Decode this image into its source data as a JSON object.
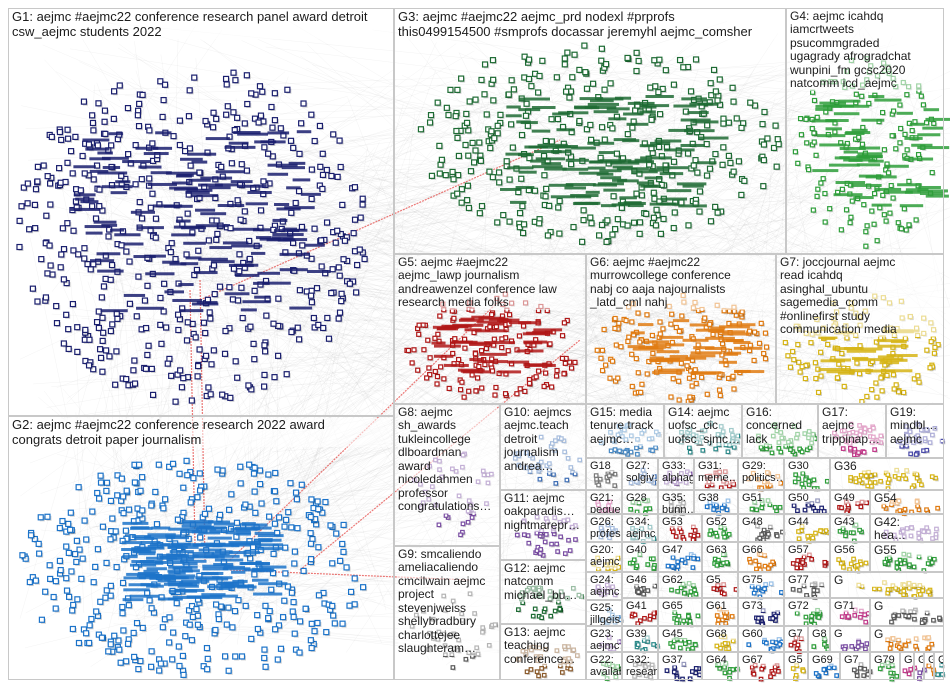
{
  "groups": [
    {
      "id": "G1",
      "text": "G1: aejmc #aejmc22 conference research panel award detroit\ncsw_aejmc students 2022",
      "color": "#1a1f6e",
      "size": "big"
    },
    {
      "id": "G2",
      "text": "G2: aejmc #aejmc22 conference research 2022 award\ncongrats detroit paper journalism",
      "color": "#1c73c9",
      "size": "big"
    },
    {
      "id": "G3",
      "text": "G3: aejmc #aejmc22 aejmc_prd nodexl #prprofs\nthis0499154500 #smprofs docassar jeremyhl aejmc_comsher",
      "color": "#1e6b34",
      "size": "big"
    },
    {
      "id": "G4",
      "text": "G4: aejmc icahdq\niamcrtweets\npsucommgraded\nugagrady afrogradchat\nwunpini_fm gcsc2020\nnatcomm icd_aejmc",
      "color": "#2e9e3a",
      "size": "mid"
    },
    {
      "id": "G5",
      "text": "G5: aejmc #aejmc22\naejmc_lawp journalism\nandreawenzel conference law\nresearch media folks",
      "color": "#b01818",
      "size": "mid"
    },
    {
      "id": "G6",
      "text": "G6: aejmc #aejmc22\nmurrowcollege conference\nnabj co aaja najournalists\n_latd_cml nahj",
      "color": "#e07b12",
      "size": "mid"
    },
    {
      "id": "G7",
      "text": "G7: joccjournal aejmc\nread icahdq\nasinghal_ubuntu\nsagemedia_comm\n#onlinefirst study\ncommunication media",
      "color": "#d6b415",
      "size": "mid"
    },
    {
      "id": "G8",
      "text": "G8: aejmc\nsh_awards\ntukleincollege\ndlboardman\naward\nnicoledahmen\nprofessor\ncongratulations…",
      "color": "#7a4ea3",
      "size": "mid"
    },
    {
      "id": "G9",
      "text": "G9: smcaliendo\nameliacaliendo\ncmcilwain aejmc\nproject\nstevenjweiss\nshellybradbury\ncharlottejee\nslaughteram…",
      "color": "#5a5a5a",
      "size": "mid"
    },
    {
      "id": "G10",
      "text": "G10: aejmcs\naejmc.teach\ndetroit\njournalism\nandrea…",
      "color": "#3f6fb5",
      "size": "mid"
    },
    {
      "id": "G11",
      "text": "G11: aejmc\noakparadis…\nnightmarepr…",
      "color": "#7a4ea3",
      "size": "mid"
    },
    {
      "id": "G12",
      "text": "G12: aejmc\nnatcomm\nmichael_bu…",
      "color": "#1e6b34",
      "size": "mid"
    },
    {
      "id": "G13",
      "text": "G13: aejmc\nteaching\nconference…",
      "color": "#8a5a2b",
      "size": "mid"
    },
    {
      "id": "G15",
      "text": "G15: media\ntenure track\naejmc…",
      "color": "#4a8ac4",
      "size": "mid"
    },
    {
      "id": "G14",
      "text": "G14: aejmc\nuofsc_cic\nuofsc_sjmc…",
      "color": "#2d8a8a",
      "size": "mid"
    },
    {
      "id": "G16",
      "text": "G16:\nconcerned\nlack",
      "color": "#2e9e3a",
      "size": "mid"
    },
    {
      "id": "G17",
      "text": "G17:\naejmc\ntrippinap…",
      "color": "#c23a8a",
      "size": "mid"
    },
    {
      "id": "G19",
      "text": "G19:\nmindbl…\naejmc",
      "color": "#4a4aa8",
      "size": "mid"
    },
    {
      "id": "G18",
      "text": "G18",
      "color": "#7a7a7a",
      "size": "mid"
    },
    {
      "id": "G27",
      "text": "G27:\nsolgiv…",
      "color": "#3f6fb5",
      "size": "mid"
    },
    {
      "id": "G33",
      "text": "G33:\nalphag…",
      "color": "#7a4ea3",
      "size": "mid"
    },
    {
      "id": "G31",
      "text": "G31:\nmeme…",
      "color": "#b01818",
      "size": "mid"
    },
    {
      "id": "G29",
      "text": "G29:\npolitics…",
      "color": "#e07b12",
      "size": "mid"
    },
    {
      "id": "G30",
      "text": "G30",
      "color": "#2e9e3a",
      "size": "mid"
    },
    {
      "id": "G36",
      "text": "G36",
      "color": "#d6b415",
      "size": "mid"
    },
    {
      "id": "G21",
      "text": "G21:\npequeñ…",
      "color": "#c23a8a",
      "size": "mid"
    },
    {
      "id": "G28",
      "text": "G28",
      "color": "#2e9e3a",
      "size": "mid"
    },
    {
      "id": "G35",
      "text": "G35:\nbunn…",
      "color": "#5a5a5a",
      "size": "mid"
    },
    {
      "id": "G38",
      "text": "G38",
      "color": "#1c73c9",
      "size": "mid"
    },
    {
      "id": "G51",
      "text": "G51",
      "color": "#2e9e3a",
      "size": "mid"
    },
    {
      "id": "G50",
      "text": "G50",
      "color": "#1a1f6e",
      "size": "mid"
    },
    {
      "id": "G49",
      "text": "G49",
      "color": "#b01818",
      "size": "mid"
    },
    {
      "id": "G54",
      "text": "G54",
      "color": "#e07b12",
      "size": "mid"
    },
    {
      "id": "G26",
      "text": "G26:\nprofes…",
      "color": "#3f6fb5",
      "size": "mid"
    },
    {
      "id": "G34",
      "text": "G34:\naejmc",
      "color": "#2d8a8a",
      "size": "mid"
    },
    {
      "id": "G53",
      "text": "G53",
      "color": "#b01818",
      "size": "mid"
    },
    {
      "id": "G52",
      "text": "G52",
      "color": "#2e9e3a",
      "size": "mid"
    },
    {
      "id": "G48",
      "text": "G48",
      "color": "#5a5a5a",
      "size": "mid"
    },
    {
      "id": "G44",
      "text": "G44",
      "color": "#d6b415",
      "size": "mid"
    },
    {
      "id": "G43",
      "text": "G43",
      "color": "#2e9e3a",
      "size": "mid"
    },
    {
      "id": "G42",
      "text": "G42:\nhea…",
      "color": "#7a4ea3",
      "size": "mid"
    },
    {
      "id": "G20",
      "text": "G20:\naejmc…",
      "color": "#d6b415",
      "size": "mid"
    },
    {
      "id": "G40",
      "text": "G40",
      "color": "#2e9e3a",
      "size": "mid"
    },
    {
      "id": "G47",
      "text": "G47",
      "color": "#1c73c9",
      "size": "mid"
    },
    {
      "id": "G63",
      "text": "G63",
      "color": "#2e9e3a",
      "size": "mid"
    },
    {
      "id": "G66",
      "text": "G66",
      "color": "#e07b12",
      "size": "mid"
    },
    {
      "id": "G57",
      "text": "G57",
      "color": "#b01818",
      "size": "mid"
    },
    {
      "id": "G56",
      "text": "G56",
      "color": "#d6b415",
      "size": "mid"
    },
    {
      "id": "G55",
      "text": "G55",
      "color": "#2e9e3a",
      "size": "mid"
    },
    {
      "id": "G24",
      "text": "G24:\naejmc…",
      "color": "#7a4ea3",
      "size": "mid"
    },
    {
      "id": "G46",
      "text": "G46",
      "color": "#5a5a5a",
      "size": "mid"
    },
    {
      "id": "G62",
      "text": "G62",
      "color": "#2e9e3a",
      "size": "mid"
    },
    {
      "id": "G5b",
      "text": "G5",
      "color": "#b01818",
      "size": "mid"
    },
    {
      "id": "G75",
      "text": "G75",
      "color": "#1c73c9",
      "size": "mid"
    },
    {
      "id": "G77",
      "text": "G77",
      "color": "#5a5a5a",
      "size": "mid"
    },
    {
      "id": "Gx1",
      "text": "G",
      "color": "#d6b415",
      "size": "mid"
    },
    {
      "id": "G25",
      "text": "G25:\njillgeis…",
      "color": "#4a8ac4",
      "size": "mid"
    },
    {
      "id": "G41",
      "text": "G41",
      "color": "#b01818",
      "size": "mid"
    },
    {
      "id": "G65",
      "text": "G65",
      "color": "#2e9e3a",
      "size": "mid"
    },
    {
      "id": "G61",
      "text": "G61",
      "color": "#e07b12",
      "size": "mid"
    },
    {
      "id": "G73",
      "text": "G73",
      "color": "#1a1f6e",
      "size": "mid"
    },
    {
      "id": "G72",
      "text": "G72",
      "color": "#2e9e3a",
      "size": "mid"
    },
    {
      "id": "G71",
      "text": "G71",
      "color": "#c23a8a",
      "size": "mid"
    },
    {
      "id": "Gx2",
      "text": "G",
      "color": "#5a5a5a",
      "size": "mid"
    },
    {
      "id": "G23",
      "text": "G23:\naejmc…",
      "color": "#7a4ea3",
      "size": "mid"
    },
    {
      "id": "G39",
      "text": "G39",
      "color": "#2d8a8a",
      "size": "mid"
    },
    {
      "id": "G45",
      "text": "G45",
      "color": "#2e9e3a",
      "size": "mid"
    },
    {
      "id": "G68",
      "text": "G68",
      "color": "#d6b415",
      "size": "mid"
    },
    {
      "id": "G60",
      "text": "G60",
      "color": "#1c73c9",
      "size": "mid"
    },
    {
      "id": "G7b",
      "text": "G7",
      "color": "#b01818",
      "size": "mid"
    },
    {
      "id": "G8b",
      "text": "G8",
      "color": "#2e9e3a",
      "size": "mid"
    },
    {
      "id": "Gx3",
      "text": "G",
      "color": "#7a4ea3",
      "size": "mid"
    },
    {
      "id": "Gx4",
      "text": "G",
      "color": "#e07b12",
      "size": "mid"
    },
    {
      "id": "G22",
      "text": "G22:\navailabl…",
      "color": "#2e9e3a",
      "size": "mid"
    },
    {
      "id": "G32",
      "text": "G32:\nresear…",
      "color": "#5a5a5a",
      "size": "mid"
    },
    {
      "id": "G37",
      "text": "G37",
      "color": "#1a1f6e",
      "size": "mid"
    },
    {
      "id": "G64",
      "text": "G64",
      "color": "#2e9e3a",
      "size": "mid"
    },
    {
      "id": "G67",
      "text": "G67",
      "color": "#b01818",
      "size": "mid"
    },
    {
      "id": "G5c",
      "text": "G5",
      "color": "#d6b415",
      "size": "mid"
    },
    {
      "id": "G69",
      "text": "G69",
      "color": "#1c73c9",
      "size": "mid"
    },
    {
      "id": "G7c",
      "text": "G7",
      "color": "#5a5a5a",
      "size": "mid"
    },
    {
      "id": "G79",
      "text": "G79",
      "color": "#2e9e3a",
      "size": "mid"
    },
    {
      "id": "Gx5",
      "text": "G",
      "color": "#c23a8a",
      "size": "mid"
    },
    {
      "id": "Gx6",
      "text": "G",
      "color": "#7a4ea3",
      "size": "mid"
    },
    {
      "id": "Gx7",
      "text": "G",
      "color": "#e07b12",
      "size": "mid"
    },
    {
      "id": "Gx8",
      "text": "G",
      "color": "#2d8a8a",
      "size": "mid"
    }
  ],
  "colors": {
    "edge": "#9a9a9a",
    "bridge": "#e0201c",
    "border": "#c8c8c8"
  }
}
